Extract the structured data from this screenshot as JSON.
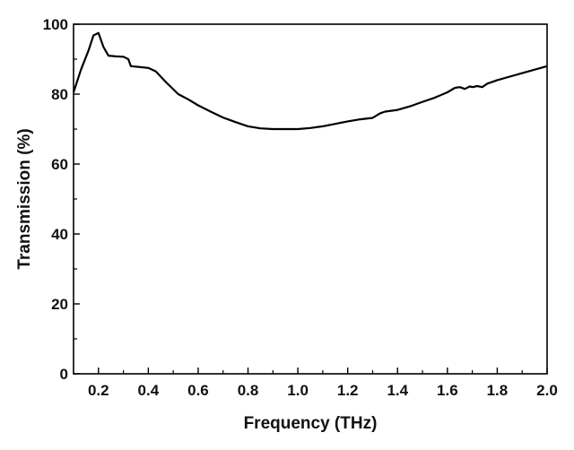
{
  "chart_data": {
    "type": "line",
    "title": "",
    "xlabel": "Frequency (THz)",
    "ylabel": "Transmission (%)",
    "xlim": [
      0.1,
      2.0
    ],
    "ylim": [
      0,
      100
    ],
    "xticks": [
      0.2,
      0.4,
      0.6,
      0.8,
      1.0,
      1.2,
      1.4,
      1.6,
      1.8,
      2.0
    ],
    "xtick_labels": [
      "0.2",
      "0.4",
      "0.6",
      "0.8",
      "1.0",
      "1.2",
      "1.4",
      "1.6",
      "1.8",
      "2.0"
    ],
    "yticks": [
      0,
      20,
      40,
      60,
      80,
      100
    ],
    "ytick_labels": [
      "0",
      "20",
      "40",
      "60",
      "80",
      "100"
    ],
    "grid": false,
    "legend": "none",
    "series": [
      {
        "color": "#000000",
        "x": [
          0.1,
          0.13,
          0.16,
          0.18,
          0.2,
          0.22,
          0.24,
          0.27,
          0.3,
          0.32,
          0.33,
          0.36,
          0.4,
          0.43,
          0.47,
          0.52,
          0.56,
          0.6,
          0.65,
          0.7,
          0.75,
          0.8,
          0.85,
          0.9,
          0.95,
          1.0,
          1.05,
          1.1,
          1.15,
          1.2,
          1.25,
          1.3,
          1.33,
          1.35,
          1.4,
          1.45,
          1.5,
          1.55,
          1.6,
          1.63,
          1.65,
          1.67,
          1.69,
          1.7,
          1.72,
          1.74,
          1.76,
          1.8,
          1.85,
          1.9,
          1.95,
          2.0
        ],
        "y": [
          80.5,
          87,
          92.5,
          96.8,
          97.5,
          93.5,
          91,
          90.8,
          90.7,
          90,
          88,
          87.8,
          87.5,
          86.5,
          83.5,
          80,
          78.5,
          76.8,
          75,
          73.3,
          72,
          70.8,
          70.2,
          70,
          70,
          70,
          70.3,
          70.8,
          71.5,
          72.2,
          72.8,
          73.2,
          74.5,
          75,
          75.5,
          76.5,
          77.8,
          79,
          80.5,
          81.8,
          82,
          81.5,
          82.2,
          82,
          82.3,
          82,
          83,
          84,
          85,
          86,
          87,
          88
        ]
      }
    ]
  }
}
